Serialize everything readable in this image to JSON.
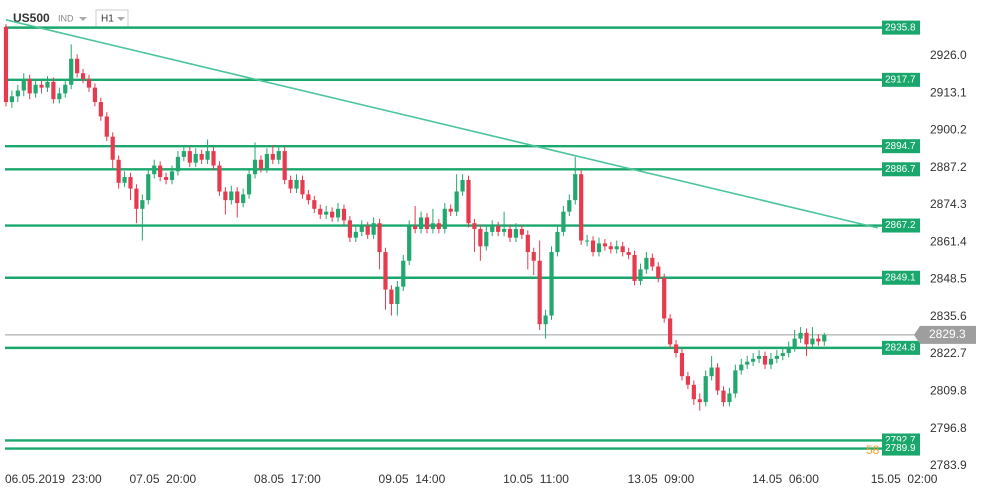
{
  "chart_data": {
    "type": "candlestick",
    "symbol": "US500",
    "market": "IND",
    "timeframe": "H1",
    "up_color": "#22a86e",
    "down_color": "#e63a4e",
    "level_color": "#19a76c",
    "trend_color": "#4cc59a",
    "price_color": "#9e9e9e",
    "ylim": [
      2779.0,
      2942.6
    ],
    "xlim": [
      -0.5,
      148
    ],
    "yticks": [
      {
        "value": 2926,
        "label": "2926.0"
      },
      2913.1,
      2900.2,
      2887.2,
      2874.3,
      2861.4,
      2848.5,
      2835.6,
      2822.7,
      2809.8,
      2796.8,
      2783.9
    ],
    "xticks": [
      {
        "value": 0,
        "label": "06.05.2019  23:00"
      },
      {
        "value": 21,
        "label": "07.05  20:00"
      },
      {
        "value": 42,
        "label": "08.05  17:00"
      },
      {
        "value": 63,
        "label": "09.05  14:00"
      },
      {
        "value": 84,
        "label": "10.05  11:00"
      },
      {
        "value": 105,
        "label": "13.05  09:00"
      },
      {
        "value": 126,
        "label": "14.05  06:00"
      },
      {
        "value": 146,
        "label": "15.05  02:00"
      }
    ],
    "levels": [
      2935.8,
      2917.7,
      2894.7,
      2886.7,
      2867.2,
      2849.1,
      2824.8,
      2792.7,
      2789.9
    ],
    "current_price": 2829.3,
    "trendline": {
      "x": [
        0,
        147
      ],
      "y": [
        2938.5,
        2866.4
      ]
    },
    "annotation": "58",
    "open": [
      2936,
      2910,
      2912,
      2914,
      2918,
      2913,
      2916,
      2915,
      2917,
      2911,
      2913,
      2916,
      2925,
      2920,
      2918,
      2915,
      2910,
      2905,
      2898,
      2890,
      2882,
      2884,
      2880,
      2873,
      2876,
      2885,
      2888,
      2884,
      2883,
      2886,
      2891,
      2893,
      2889,
      2892,
      2890,
      2893,
      2888,
      2879,
      2876,
      2879,
      2875,
      2878,
      2885,
      2890,
      2887,
      2892,
      2890,
      2893,
      2883,
      2880,
      2883,
      2878,
      2876,
      2873,
      2871,
      2872,
      2870,
      2873,
      2869,
      2863,
      2865,
      2867,
      2864,
      2868,
      2858,
      2845,
      2840,
      2846,
      2855,
      2867,
      2866,
      2870,
      2866,
      2868,
      2866,
      2873,
      2872,
      2879,
      2883,
      2868,
      2866,
      2860,
      2865,
      2867,
      2865,
      2866,
      2863,
      2866,
      2864,
      2858,
      2855,
      2833,
      2836,
      2858,
      2865,
      2872,
      2876,
      2885,
      2862,
      2862,
      2858,
      2861,
      2860,
      2859,
      2860,
      2858,
      2857,
      2848,
      2852,
      2856,
      2853,
      2849,
      2835,
      2826,
      2823,
      2815,
      2812,
      2807,
      2806,
      2815,
      2818,
      2810,
      2806,
      2809,
      2817,
      2819,
      2820,
      2821,
      2822,
      2819,
      2821,
      2822,
      2823,
      2825,
      2828,
      2830,
      2826,
      2828,
      2827
    ],
    "high": [
      2937,
      2914,
      2916,
      2920,
      2919.5,
      2918,
      2917.5,
      2919,
      2918.5,
      2915,
      2918,
      2930,
      2926.5,
      2921.5,
      2919.5,
      2916.5,
      2911.5,
      2906.5,
      2899.5,
      2891.5,
      2886,
      2885.5,
      2881.5,
      2878,
      2887,
      2890,
      2889.5,
      2885.5,
      2888,
      2893,
      2895,
      2894.5,
      2894,
      2893.5,
      2897,
      2894.5,
      2889.5,
      2880.5,
      2881,
      2880.5,
      2880,
      2887,
      2896,
      2891.5,
      2894,
      2895,
      2895,
      2894.5,
      2884.5,
      2885,
      2884.5,
      2879.5,
      2877.5,
      2874.5,
      2874,
      2873.5,
      2875,
      2874.5,
      2870.5,
      2867,
      2869,
      2868.5,
      2870,
      2869.5,
      2859.5,
      2846.5,
      2848,
      2857,
      2869,
      2874,
      2872,
      2871.5,
      2873,
      2869.5,
      2875,
      2874.5,
      2885,
      2885,
      2884.5,
      2869.5,
      2867.5,
      2867,
      2869,
      2868.5,
      2872,
      2867.5,
      2868,
      2867.5,
      2865.5,
      2859.5,
      2862,
      2838,
      2860,
      2867,
      2874,
      2878,
      2891,
      2886.5,
      2864,
      2863.5,
      2863,
      2862.5,
      2861.5,
      2862,
      2861.5,
      2859.5,
      2858.5,
      2854,
      2858,
      2857.5,
      2854.5,
      2850.5,
      2836.5,
      2827.5,
      2824.5,
      2816.5,
      2813.5,
      2809,
      2817,
      2822,
      2819.5,
      2811.5,
      2811,
      2819,
      2821,
      2822,
      2823,
      2824,
      2823.5,
      2823,
      2824,
      2825,
      2827,
      2831,
      2832,
      2831.5,
      2832,
      2829.5,
      2830
    ],
    "low": [
      2908.5,
      2908,
      2910,
      2912,
      2911,
      2911.5,
      2913,
      2913.5,
      2909.5,
      2909.5,
      2911.5,
      2914.5,
      2918.5,
      2916.5,
      2913.5,
      2908.5,
      2903.5,
      2896.5,
      2887,
      2880,
      2880.5,
      2876,
      2868,
      2862,
      2874.5,
      2883.5,
      2882.5,
      2881.5,
      2881.5,
      2884.5,
      2889.5,
      2887.5,
      2887.5,
      2888.5,
      2888.5,
      2886.5,
      2877.5,
      2871,
      2874.5,
      2870,
      2873.5,
      2876.5,
      2883.5,
      2885.5,
      2885.5,
      2888.5,
      2888.5,
      2881.5,
      2878.5,
      2878.5,
      2876.5,
      2874.5,
      2871.5,
      2869.5,
      2869.5,
      2868.5,
      2868.5,
      2867.5,
      2861.5,
      2861.5,
      2863.5,
      2862.5,
      2862.5,
      2852,
      2838,
      2836,
      2836,
      2844.5,
      2853.5,
      2864.5,
      2864.5,
      2864.5,
      2864.5,
      2864.5,
      2864.5,
      2870.5,
      2870.5,
      2877.5,
      2866.5,
      2858,
      2855,
      2858.5,
      2863.5,
      2863.5,
      2863.5,
      2861.5,
      2861.5,
      2862.5,
      2852,
      2850,
      2831,
      2828,
      2834.5,
      2856.5,
      2863.5,
      2870.5,
      2874.5,
      2860.5,
      2860,
      2856.5,
      2856.5,
      2858.5,
      2857.5,
      2857.5,
      2856.5,
      2855.5,
      2846.5,
      2846.5,
      2850.5,
      2851.5,
      2847.5,
      2833.5,
      2824.5,
      2821.5,
      2813.5,
      2810.5,
      2805,
      2803,
      2804.5,
      2813.5,
      2808.5,
      2804.5,
      2804.5,
      2807.5,
      2815.5,
      2817.5,
      2818.5,
      2819.5,
      2817.5,
      2817.5,
      2819.5,
      2820.5,
      2821.5,
      2823.5,
      2826.5,
      2822,
      2824.5,
      2825.5,
      2825.5
    ],
    "close": [
      2910,
      2912,
      2914,
      2918,
      2913,
      2916,
      2915,
      2917,
      2911,
      2913,
      2916,
      2925,
      2920,
      2918,
      2915,
      2910,
      2905,
      2898,
      2890,
      2882,
      2884,
      2880,
      2873,
      2876,
      2885,
      2888,
      2884,
      2883,
      2886,
      2891,
      2893,
      2889,
      2892,
      2890,
      2893,
      2888,
      2879,
      2876,
      2879,
      2875,
      2878,
      2885,
      2890,
      2887,
      2892,
      2890,
      2893,
      2883,
      2880,
      2883,
      2878,
      2876,
      2873,
      2871,
      2872,
      2870,
      2873,
      2869,
      2863,
      2865,
      2867,
      2864,
      2868,
      2858,
      2845,
      2840,
      2846,
      2855,
      2867,
      2866,
      2870,
      2866,
      2868,
      2866,
      2873,
      2872,
      2879,
      2883,
      2868,
      2866,
      2860,
      2865,
      2867,
      2865,
      2866,
      2863,
      2866,
      2864,
      2858,
      2855,
      2833,
      2836,
      2858,
      2865,
      2872,
      2876,
      2885,
      2862,
      2862,
      2858,
      2861,
      2860,
      2859,
      2860,
      2858,
      2857,
      2848,
      2852,
      2856,
      2853,
      2849,
      2835,
      2826,
      2823,
      2815,
      2812,
      2807,
      2806,
      2815,
      2818,
      2810,
      2806,
      2809,
      2817,
      2819,
      2820,
      2821,
      2822,
      2819,
      2821,
      2822,
      2823,
      2825,
      2828,
      2830,
      2826,
      2828,
      2827,
      2829.3
    ]
  }
}
